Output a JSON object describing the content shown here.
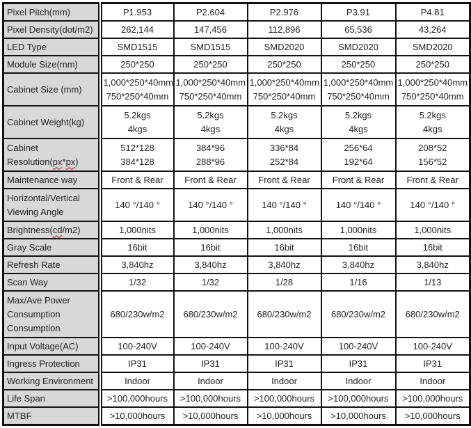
{
  "title": "LED display series specification table",
  "colors": {
    "label_background": "#d8d8d8",
    "border": "#111111",
    "text": "#1f1f1f",
    "spellcheck_underline": "#e60000"
  },
  "table": {
    "column_count": 6,
    "product_columns": [
      "P1.953",
      "P2.604",
      "P2.976",
      "P3.91",
      "P4.81"
    ],
    "rows": [
      {
        "label": "Pixel Pitch(mm)",
        "values": [
          [
            "P1.953"
          ],
          [
            "P2.604"
          ],
          [
            "P2.976"
          ],
          [
            "P3.91"
          ],
          [
            "P4.81"
          ]
        ]
      },
      {
        "label": "Pixel Density(dot/m2)",
        "values": [
          [
            "262,144"
          ],
          [
            "147,456"
          ],
          [
            "112,896"
          ],
          [
            "65,536"
          ],
          [
            "43,264"
          ]
        ]
      },
      {
        "label": "LED Type",
        "values": [
          [
            "SMD1515"
          ],
          [
            "SMD1515"
          ],
          [
            "SMD2020"
          ],
          [
            "SMD2020"
          ],
          [
            "SMD2020"
          ]
        ]
      },
      {
        "label": "Module Size(mm)",
        "values": [
          [
            "250*250"
          ],
          [
            "250*250"
          ],
          [
            "250*250"
          ],
          [
            "250*250"
          ],
          [
            "250*250"
          ]
        ]
      },
      {
        "label": "Cabinet Size (mm)",
        "values": [
          [
            "1,000*250*40mm",
            "750*250*40mm"
          ],
          [
            "1,000*250*40mm",
            "750*250*40mm"
          ],
          [
            "1,000*250*40mm",
            "750*250*40mm"
          ],
          [
            "1,000*250*40mm",
            "750*250*40mm"
          ],
          [
            "1,000*250*40mm",
            "750*250*40mm"
          ]
        ]
      },
      {
        "label": "Cabinet Weight(kg)",
        "values": [
          [
            "5.2kgs",
            "4kgs"
          ],
          [
            "5.2kgs",
            "4kgs"
          ],
          [
            "5.2kgs",
            "4kgs"
          ],
          [
            "5.2kgs",
            "4kgs"
          ],
          [
            "5.2kgs",
            "4kgs"
          ]
        ]
      },
      {
        "label": "Cabinet\nResolution(px*px)",
        "wavy": [
          "px"
        ],
        "values": [
          [
            "512*128",
            "384*128"
          ],
          [
            "384*96",
            "288*96"
          ],
          [
            "336*84",
            "252*84"
          ],
          [
            "256*64",
            "192*64"
          ],
          [
            "208*52",
            "156*52"
          ]
        ]
      },
      {
        "label": "Maintenance way",
        "values": [
          [
            "Front & Rear"
          ],
          [
            "Front & Rear"
          ],
          [
            "Front & Rear"
          ],
          [
            "Front & Rear"
          ],
          [
            "Front & Rear"
          ]
        ]
      },
      {
        "label": "Horizontal/Vertical\nViewing Angle",
        "values": [
          [
            "140 °/140 °"
          ],
          [
            "140 °/140 °"
          ],
          [
            "140 °/140 °"
          ],
          [
            "140 °/140 °"
          ],
          [
            "140 °/140 °"
          ]
        ]
      },
      {
        "label": "Brightness(cd/m2)",
        "wavy": [
          "cd"
        ],
        "values": [
          [
            "1,000nits"
          ],
          [
            "1,000nits"
          ],
          [
            "1,000nits"
          ],
          [
            "1,000nits"
          ],
          [
            "1,000nits"
          ]
        ]
      },
      {
        "label": "Gray Scale",
        "values": [
          [
            "16bit"
          ],
          [
            "16bit"
          ],
          [
            "16bit"
          ],
          [
            "16bit"
          ],
          [
            "16bit"
          ]
        ]
      },
      {
        "label": "Refresh Rate",
        "values": [
          [
            "3,840hz"
          ],
          [
            "3,840hz"
          ],
          [
            "3,840hz"
          ],
          [
            "3,840hz"
          ],
          [
            "3,840hz"
          ]
        ]
      },
      {
        "label": "Scan Way",
        "values": [
          [
            "1/32"
          ],
          [
            "1/32"
          ],
          [
            "1/28"
          ],
          [
            "1/16"
          ],
          [
            "1/13"
          ]
        ]
      },
      {
        "label": "Max/Ave Power\nConsumption\nConsumption",
        "values": [
          [
            "680/230w/m2"
          ],
          [
            "680/230w/m2"
          ],
          [
            "680/230w/m2"
          ],
          [
            "680/230w/m2"
          ],
          [
            "680/230w/m2"
          ]
        ]
      },
      {
        "label": "Input Voltage(AC)",
        "values": [
          [
            "100-240V"
          ],
          [
            "100-240V"
          ],
          [
            "100-240V"
          ],
          [
            "100-240V"
          ],
          [
            "100-240V"
          ]
        ]
      },
      {
        "label": "Ingress Protection",
        "values": [
          [
            "IP31"
          ],
          [
            "IP31"
          ],
          [
            "IP31"
          ],
          [
            "IP31"
          ],
          [
            "IP31"
          ]
        ]
      },
      {
        "label": "Working Environment",
        "values": [
          [
            "Indoor"
          ],
          [
            "Indoor"
          ],
          [
            "Indoor"
          ],
          [
            "Indoor"
          ],
          [
            "Indoor"
          ]
        ]
      },
      {
        "label": "Life Span",
        "values": [
          [
            ">100,000hours"
          ],
          [
            ">100,000hours"
          ],
          [
            ">100,000hours"
          ],
          [
            ">100,000hours"
          ],
          [
            ">100,000hours"
          ]
        ]
      },
      {
        "label": "MTBF",
        "values": [
          [
            ">10,000hours"
          ],
          [
            ">10,000hours"
          ],
          [
            ">10,000hours"
          ],
          [
            ">10,000hours"
          ],
          [
            ">10,000hours"
          ]
        ]
      }
    ]
  }
}
